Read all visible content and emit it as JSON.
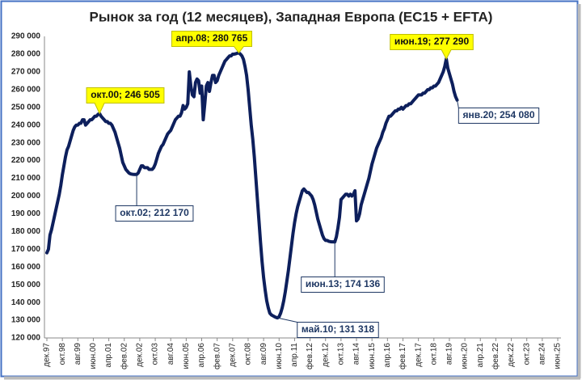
{
  "chart_data": {
    "type": "line",
    "title": "Рынок за год (12 месяцев), Западная Европа (EC15 + EFTA)",
    "categories": [
      "дек.97",
      null,
      null,
      null,
      null,
      null,
      null,
      null,
      null,
      null,
      "окт.98",
      null,
      null,
      null,
      null,
      null,
      null,
      null,
      null,
      null,
      "авг.99",
      null,
      null,
      null,
      null,
      null,
      null,
      null,
      null,
      null,
      "июн.00",
      null,
      null,
      null,
      null,
      null,
      null,
      null,
      null,
      null,
      "апр.01",
      null,
      null,
      null,
      null,
      null,
      null,
      null,
      null,
      null,
      "фев.02",
      null,
      null,
      null,
      null,
      null,
      null,
      null,
      null,
      null,
      "дек.02",
      null,
      null,
      null,
      null,
      null,
      null,
      null,
      null,
      null,
      "окт.03",
      null,
      null,
      null,
      null,
      null,
      null,
      null,
      null,
      null,
      "авг.04",
      null,
      null,
      null,
      null,
      null,
      null,
      null,
      null,
      null,
      "июн.05",
      null,
      null,
      null,
      null,
      null,
      null,
      null,
      null,
      null,
      "апр.06",
      null,
      null,
      null,
      null,
      null,
      null,
      null,
      null,
      null,
      "фев.07",
      null,
      null,
      null,
      null,
      null,
      null,
      null,
      null,
      null,
      "дек.07",
      null,
      null,
      null,
      null,
      null,
      null,
      null,
      null,
      null,
      "окт.08",
      null,
      null,
      null,
      null,
      null,
      null,
      null,
      null,
      null,
      "авг.09",
      null,
      null,
      null,
      null,
      null,
      null,
      null,
      null,
      null,
      "июн.10",
      null,
      null,
      null,
      null,
      null,
      null,
      null,
      null,
      null,
      "апр.11",
      null,
      null,
      null,
      null,
      null,
      null,
      null,
      null,
      null,
      "фев.12",
      null,
      null,
      null,
      null,
      null,
      null,
      null,
      null,
      null,
      "дек.12",
      null,
      null,
      null,
      null,
      null,
      null,
      null,
      null,
      null,
      "окт.13",
      null,
      null,
      null,
      null,
      null,
      null,
      null,
      null,
      null,
      "авг.14",
      null,
      null,
      null,
      null,
      null,
      null,
      null,
      null,
      null,
      "июн.15",
      null,
      null,
      null,
      null,
      null,
      null,
      null,
      null,
      null,
      "апр.16",
      null,
      null,
      null,
      null,
      null,
      null,
      null,
      null,
      null,
      "фев.17",
      null,
      null,
      null,
      null,
      null,
      null,
      null,
      null,
      null,
      "дек.17",
      null,
      null,
      null,
      null,
      null,
      null,
      null,
      null,
      null,
      "окт.18",
      null,
      null,
      null,
      null,
      null,
      null,
      null,
      null,
      null,
      "авг.19",
      null,
      null,
      null,
      null,
      null,
      null,
      null,
      null,
      null,
      "июн.20",
      null,
      null,
      null,
      null,
      null,
      null,
      null,
      null,
      null,
      "апр.21",
      null,
      null,
      null,
      null,
      null,
      null,
      null,
      null,
      null,
      "фев.22",
      null,
      null,
      null,
      null,
      null,
      null,
      null,
      null,
      null,
      "дек.22",
      null,
      null,
      null,
      null,
      null,
      null,
      null,
      null,
      null,
      "окт.23",
      null,
      null,
      null,
      null,
      null,
      null,
      null,
      null,
      null,
      "авг.24",
      null,
      null,
      null,
      null,
      null,
      null,
      null,
      null,
      null,
      "июн.25"
    ],
    "series": [
      {
        "color": "#0d1f5c",
        "values": [
          168000,
          170000,
          178000,
          181000,
          185000,
          189000,
          193000,
          197000,
          201000,
          206000,
          212000,
          217000,
          222000,
          226000,
          228000,
          231000,
          234000,
          237000,
          239000,
          240000,
          240000,
          241000,
          241000,
          243000,
          243000,
          240000,
          241000,
          242000,
          243000,
          243000,
          244000,
          245000,
          245000,
          246000,
          246505,
          245000,
          244000,
          243000,
          242000,
          242000,
          241000,
          241000,
          240000,
          238000,
          236000,
          233000,
          230000,
          227000,
          223000,
          219000,
          217000,
          215000,
          214000,
          213000,
          212500,
          212300,
          212200,
          212200,
          212170,
          213000,
          215000,
          217000,
          217000,
          216000,
          216000,
          216000,
          215000,
          215000,
          215000,
          216000,
          218000,
          221000,
          224000,
          226000,
          228000,
          229000,
          231000,
          233000,
          235000,
          236000,
          237000,
          239000,
          241000,
          243000,
          244000,
          245000,
          245000,
          247000,
          251000,
          249000,
          250000,
          252000,
          270000,
          262000,
          257000,
          256000,
          264000,
          266000,
          265000,
          258000,
          262000,
          243000,
          252000,
          262000,
          264000,
          259000,
          264000,
          268000,
          268000,
          264000,
          265000,
          268000,
          270000,
          272000,
          274000,
          276000,
          277000,
          278000,
          279000,
          279000,
          280000,
          280000,
          280200,
          280500,
          280765,
          280000,
          279000,
          277000,
          273000,
          268000,
          260000,
          250000,
          240000,
          232000,
          222000,
          210000,
          198000,
          186000,
          174000,
          163000,
          154000,
          147000,
          141000,
          137000,
          134000,
          133000,
          132500,
          132000,
          131600,
          131318,
          132000,
          134000,
          137000,
          141000,
          146000,
          152000,
          158000,
          165000,
          172000,
          179000,
          185000,
          190000,
          194000,
          197000,
          200000,
          203000,
          204000,
          203000,
          202000,
          202000,
          201000,
          200000,
          198000,
          195000,
          191000,
          187000,
          184000,
          181000,
          178000,
          176000,
          175000,
          175000,
          174500,
          174300,
          174200,
          174200,
          174136,
          177000,
          182000,
          188000,
          198000,
          199000,
          200000,
          201000,
          201000,
          200000,
          201000,
          200000,
          201000,
          203000,
          186000,
          187000,
          190000,
          195000,
          198000,
          201000,
          204000,
          207000,
          210000,
          214000,
          218000,
          221000,
          224000,
          227000,
          229000,
          231000,
          233000,
          236000,
          238000,
          241000,
          243000,
          245000,
          245000,
          246000,
          247000,
          248000,
          248000,
          249000,
          249000,
          250000,
          249000,
          250000,
          251000,
          251000,
          252000,
          252000,
          253000,
          254000,
          255000,
          256000,
          257000,
          257000,
          257000,
          258000,
          258000,
          259000,
          260000,
          260000,
          261000,
          261000,
          262000,
          262000,
          263000,
          264000,
          266000,
          268000,
          270000,
          273000,
          277290,
          272000,
          269000,
          266000,
          263000,
          259000,
          256000,
          254080,
          null,
          null,
          null,
          null,
          null,
          null,
          null,
          null,
          null,
          null,
          null,
          null,
          null,
          null,
          null,
          null,
          null,
          null,
          null,
          null,
          null,
          null,
          null,
          null,
          null,
          null,
          null,
          null,
          null,
          null,
          null,
          null,
          null,
          null,
          null,
          null,
          null,
          null,
          null,
          null,
          null,
          null,
          null,
          null,
          null,
          null,
          null,
          null,
          null,
          null,
          null,
          null,
          null,
          null,
          null,
          null,
          null,
          null,
          null,
          null,
          null,
          null,
          null,
          null,
          null
        ]
      }
    ],
    "ylim": [
      120000,
      290000
    ],
    "yticks": [
      {
        "value": 120000,
        "label": "120 000"
      },
      {
        "value": 130000,
        "label": "130 000"
      },
      {
        "value": 140000,
        "label": "140 000"
      },
      {
        "value": 150000,
        "label": "150 000"
      },
      {
        "value": 160000,
        "label": "160 000"
      },
      {
        "value": 170000,
        "label": "170 000"
      },
      {
        "value": 180000,
        "label": "180 000"
      },
      {
        "value": 190000,
        "label": "190 000"
      },
      {
        "value": 200000,
        "label": "200 000"
      },
      {
        "value": 210000,
        "label": "210 000"
      },
      {
        "value": 220000,
        "label": "220 000"
      },
      {
        "value": 230000,
        "label": "230 000"
      },
      {
        "value": 240000,
        "label": "240 000"
      },
      {
        "value": 250000,
        "label": "250 000"
      },
      {
        "value": 260000,
        "label": "260 000"
      },
      {
        "value": 270000,
        "label": "270 000"
      },
      {
        "value": 280000,
        "label": "280 000"
      },
      {
        "value": 290000,
        "label": "290 000"
      }
    ],
    "grid": false,
    "annotations": [
      {
        "label": "окт.00; 246 505",
        "style": "yellow"
      },
      {
        "label": "апр.08; 280 765",
        "style": "yellow"
      },
      {
        "label": "июн.19; 277 290",
        "style": "yellow"
      },
      {
        "label": "окт.02; 212 170",
        "style": "white"
      },
      {
        "label": "июн.13; 174 136",
        "style": "white"
      },
      {
        "label": "май.10; 131 318",
        "style": "white"
      },
      {
        "label": "янв.20; 254 080",
        "style": "white"
      }
    ]
  }
}
